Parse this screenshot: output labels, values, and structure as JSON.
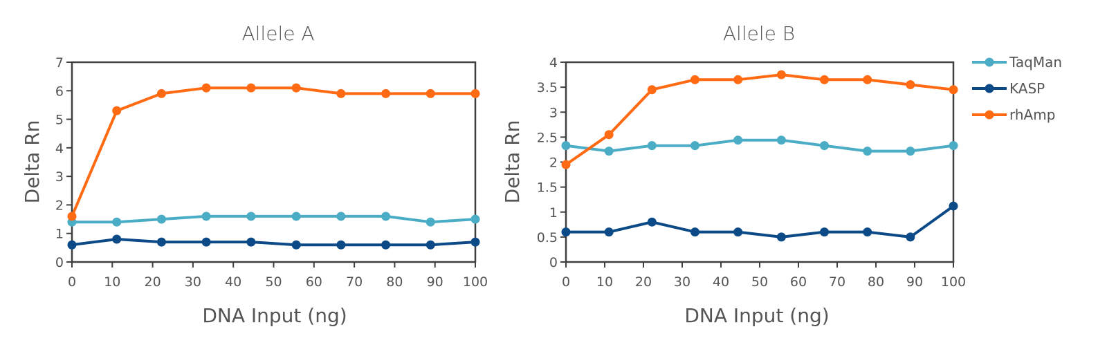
{
  "chart_data": [
    {
      "type": "line",
      "title": "Allele A",
      "xlabel": "DNA Input (ng)",
      "ylabel": "Delta Rn",
      "xlim": [
        0,
        100
      ],
      "ylim": [
        0,
        7
      ],
      "xticks": [
        "0",
        "10",
        "20",
        "30",
        "40",
        "50",
        "60",
        "70",
        "80",
        "90",
        "100"
      ],
      "yticks": [
        "0",
        "1",
        "2",
        "3",
        "4",
        "5",
        "6",
        "7"
      ],
      "x": [
        0,
        11.1,
        22.2,
        33.3,
        44.4,
        55.6,
        66.7,
        77.8,
        88.9,
        100
      ],
      "grid": false,
      "series": [
        {
          "name": "TaqMan",
          "color": "#4BACC6",
          "values": [
            1.4,
            1.4,
            1.5,
            1.6,
            1.6,
            1.6,
            1.6,
            1.6,
            1.4,
            1.5
          ]
        },
        {
          "name": "KASP",
          "color": "#0B4A87",
          "values": [
            0.6,
            0.8,
            0.7,
            0.7,
            0.7,
            0.6,
            0.6,
            0.6,
            0.6,
            0.7
          ]
        },
        {
          "name": "rhAmp",
          "color": "#FF6A13",
          "values": [
            1.6,
            5.3,
            5.9,
            6.1,
            6.1,
            6.1,
            5.9,
            5.9,
            5.9,
            5.9
          ]
        }
      ]
    },
    {
      "type": "line",
      "title": "Allele B",
      "xlabel": "DNA Input (ng)",
      "ylabel": "Delta Rn",
      "xlim": [
        0,
        100
      ],
      "ylim": [
        0,
        4
      ],
      "xticks": [
        "0",
        "10",
        "20",
        "30",
        "40",
        "50",
        "60",
        "70",
        "80",
        "90",
        "100"
      ],
      "yticks": [
        "0",
        "0.5",
        "1",
        "1.5",
        "2",
        "2.5",
        "3",
        "3.5",
        "4"
      ],
      "x": [
        0,
        11.1,
        22.2,
        33.3,
        44.4,
        55.6,
        66.7,
        77.8,
        88.9,
        100
      ],
      "grid": false,
      "legend": "right",
      "series": [
        {
          "name": "TaqMan",
          "color": "#4BACC6",
          "values": [
            2.33,
            2.22,
            2.33,
            2.33,
            2.44,
            2.44,
            2.33,
            2.22,
            2.22,
            2.33
          ]
        },
        {
          "name": "KASP",
          "color": "#0B4A87",
          "values": [
            0.6,
            0.6,
            0.8,
            0.6,
            0.6,
            0.5,
            0.6,
            0.6,
            0.5,
            1.12
          ]
        },
        {
          "name": "rhAmp",
          "color": "#FF6A13",
          "values": [
            1.95,
            2.55,
            3.45,
            3.65,
            3.65,
            3.75,
            3.65,
            3.65,
            3.55,
            3.45
          ]
        }
      ]
    }
  ],
  "legend": {
    "items": [
      {
        "name": "TaqMan",
        "color": "#4BACC6"
      },
      {
        "name": "KASP",
        "color": "#0B4A87"
      },
      {
        "name": "rhAmp",
        "color": "#FF6A13"
      }
    ]
  }
}
